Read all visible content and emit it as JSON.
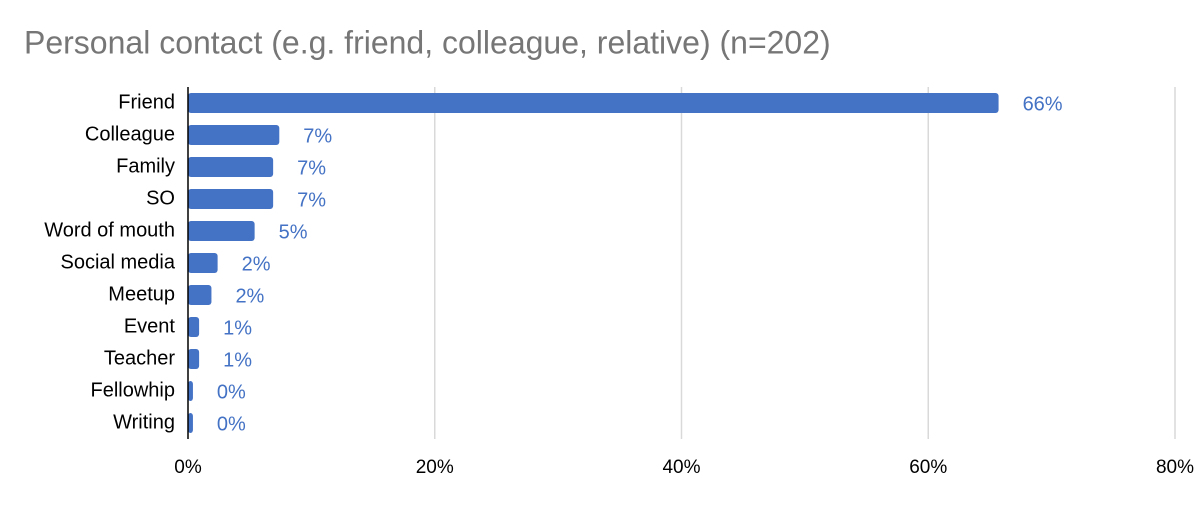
{
  "chart_data": {
    "type": "bar",
    "orientation": "horizontal",
    "title": "Personal contact (e.g. friend, colleague, relative) (n=202)",
    "categories": [
      "Friend",
      "Colleague",
      "Family",
      "SO",
      "Word of mouth",
      "Social media",
      "Meetup",
      "Event",
      "Teacher",
      "Fellowhip",
      "Writing"
    ],
    "values": [
      65.7,
      7.4,
      6.9,
      6.9,
      5.4,
      2.4,
      1.9,
      0.9,
      0.9,
      0.4,
      0.4
    ],
    "value_labels": [
      "66%",
      "7%",
      "7%",
      "7%",
      "5%",
      "2%",
      "2%",
      "1%",
      "1%",
      "0%",
      "0%"
    ],
    "color": "#4472c4",
    "xlim": [
      0,
      80
    ],
    "xticks": [
      {
        "value": 0,
        "label": "0%"
      },
      {
        "value": 20,
        "label": "20%"
      },
      {
        "value": 40,
        "label": "40%"
      },
      {
        "value": 60,
        "label": "60%"
      },
      {
        "value": 80,
        "label": "80%"
      }
    ],
    "grid": true
  }
}
